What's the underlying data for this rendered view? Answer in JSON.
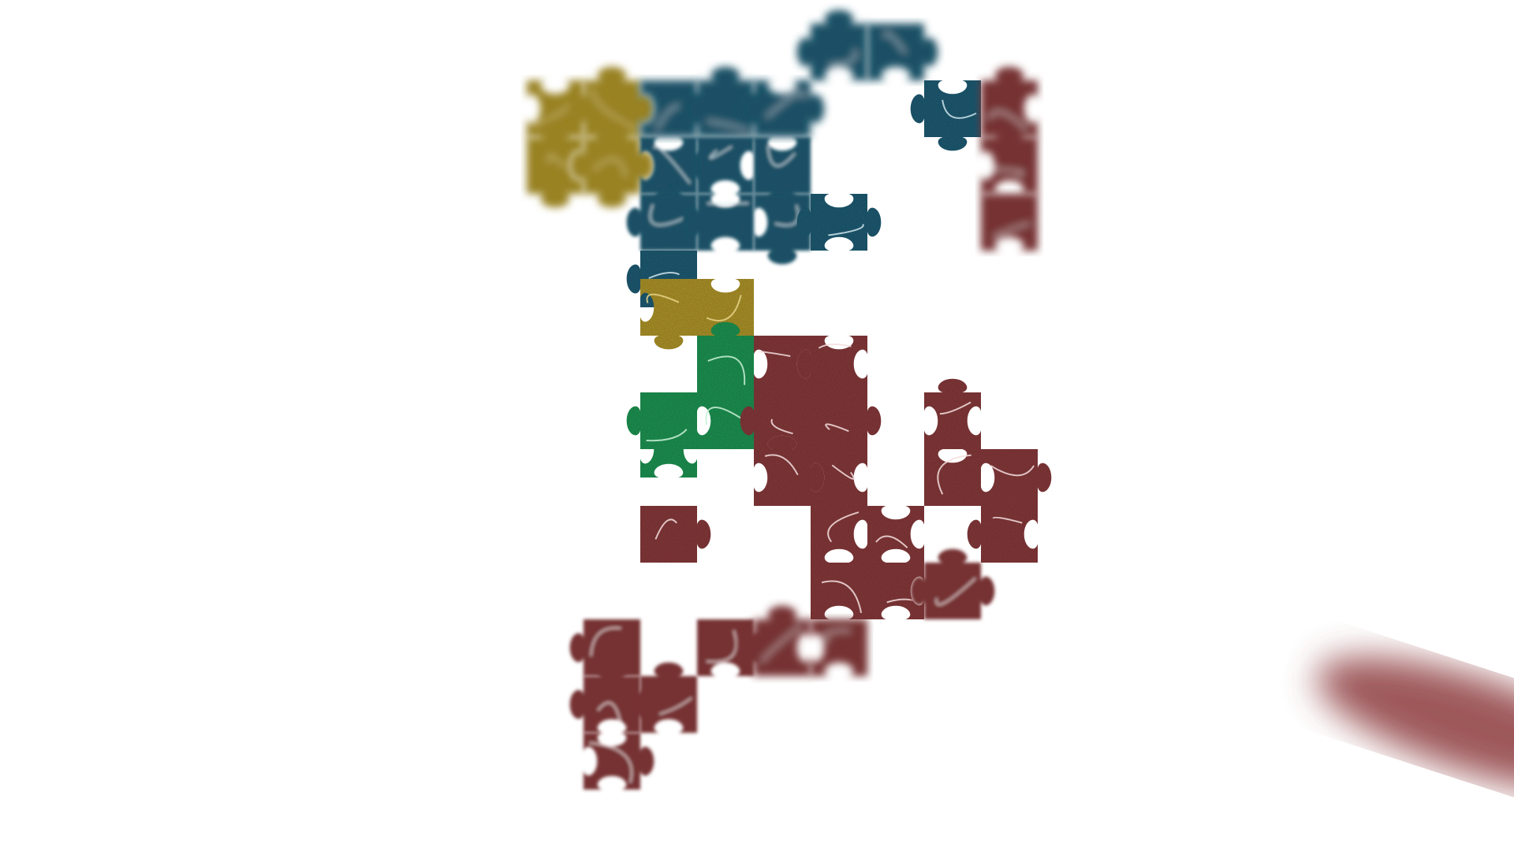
{
  "game": {
    "name": "",
    "state": "in-progress",
    "board_background": "#ffffff"
  },
  "regions": [
    {
      "id": "olive",
      "color": "#b59a2a",
      "vein_color": "#e8d58a"
    },
    {
      "id": "teal",
      "color": "#1f5f78",
      "vein_color": "#cfe4ec"
    },
    {
      "id": "green",
      "color": "#1e9a55",
      "vein_color": "#c8f0d6"
    },
    {
      "id": "maroon",
      "color": "#8c3b3d",
      "vein_color": "#f3dede"
    }
  ],
  "pieces": [
    {
      "name": "puzzle-piece-olive-1",
      "region": "olive",
      "cell": [
        0,
        1
      ],
      "blur": "heavy"
    },
    {
      "name": "puzzle-piece-olive-2",
      "region": "olive",
      "cell": [
        1,
        1
      ],
      "blur": "heavy"
    },
    {
      "name": "puzzle-piece-olive-3",
      "region": "olive",
      "cell": [
        0,
        2
      ],
      "blur": "heavy"
    },
    {
      "name": "puzzle-piece-olive-4",
      "region": "olive",
      "cell": [
        1,
        2
      ],
      "blur": "heavy"
    },
    {
      "name": "puzzle-piece-teal-1",
      "region": "teal",
      "cell": [
        2,
        1
      ],
      "blur": "heavy"
    },
    {
      "name": "puzzle-piece-teal-2",
      "region": "teal",
      "cell": [
        3,
        1
      ],
      "blur": "heavy"
    },
    {
      "name": "puzzle-piece-teal-3",
      "region": "teal",
      "cell": [
        4,
        1
      ],
      "blur": "heavy"
    },
    {
      "name": "puzzle-piece-teal-4",
      "region": "teal",
      "cell": [
        2,
        2
      ],
      "blur": "light"
    },
    {
      "name": "puzzle-piece-teal-5",
      "region": "teal",
      "cell": [
        3,
        2
      ],
      "blur": "light"
    },
    {
      "name": "puzzle-piece-teal-6",
      "region": "teal",
      "cell": [
        4,
        2
      ],
      "blur": "light"
    },
    {
      "name": "puzzle-piece-teal-7",
      "region": "teal",
      "cell": [
        2,
        3
      ],
      "blur": "light"
    },
    {
      "name": "puzzle-piece-teal-8",
      "region": "teal",
      "cell": [
        3,
        3
      ],
      "blur": "light"
    },
    {
      "name": "puzzle-piece-teal-9",
      "region": "teal",
      "cell": [
        4,
        3
      ],
      "blur": "light"
    },
    {
      "name": "puzzle-piece-teal-10",
      "region": "teal",
      "cell": [
        5,
        3
      ],
      "blur": "none"
    },
    {
      "name": "puzzle-piece-teal-11",
      "region": "teal",
      "cell": [
        5,
        0
      ],
      "blur": "heavy"
    },
    {
      "name": "puzzle-piece-teal-12",
      "region": "teal",
      "cell": [
        6,
        0
      ],
      "blur": "heavy"
    },
    {
      "name": "puzzle-piece-teal-13",
      "region": "teal",
      "cell": [
        7,
        1
      ],
      "blur": "none"
    },
    {
      "name": "puzzle-piece-teal-14",
      "region": "teal",
      "cell": [
        2,
        4
      ],
      "blur": "none"
    },
    {
      "name": "puzzle-piece-olive-5",
      "region": "olive",
      "cell": [
        2,
        4.5
      ],
      "blur": "none"
    },
    {
      "name": "puzzle-piece-olive-6",
      "region": "olive",
      "cell": [
        3,
        4.5
      ],
      "blur": "none"
    },
    {
      "name": "puzzle-piece-maroon-1",
      "region": "maroon",
      "cell": [
        8,
        1
      ],
      "blur": "heavy"
    },
    {
      "name": "puzzle-piece-maroon-2",
      "region": "maroon",
      "cell": [
        8,
        2
      ],
      "blur": "heavy"
    },
    {
      "name": "puzzle-piece-maroon-3",
      "region": "maroon",
      "cell": [
        8,
        3
      ],
      "blur": "heavy"
    },
    {
      "name": "puzzle-piece-olive-7",
      "region": "olive",
      "cell": [
        3,
        5.5
      ],
      "blur": "none"
    },
    {
      "name": "puzzle-piece-green-1",
      "region": "green",
      "cell": [
        2,
        6.5
      ],
      "blur": "none"
    },
    {
      "name": "puzzle-piece-green-2",
      "region": "green",
      "cell": [
        3,
        6.5
      ],
      "blur": "none"
    },
    {
      "name": "puzzle-piece-green-3",
      "region": "green",
      "cell": [
        3,
        5.5
      ],
      "blur": "none"
    },
    {
      "name": "puzzle-piece-green-4",
      "region": "green",
      "cell": [
        2,
        7
      ],
      "blur": "none"
    },
    {
      "name": "puzzle-piece-maroon-4",
      "region": "maroon",
      "cell": [
        4,
        5.5
      ],
      "blur": "none"
    },
    {
      "name": "puzzle-piece-maroon-5",
      "region": "maroon",
      "cell": [
        5,
        5.5
      ],
      "blur": "none"
    },
    {
      "name": "puzzle-piece-maroon-6",
      "region": "maroon",
      "cell": [
        4,
        6.5
      ],
      "blur": "none"
    },
    {
      "name": "puzzle-piece-maroon-7",
      "region": "maroon",
      "cell": [
        5,
        6.5
      ],
      "blur": "none"
    },
    {
      "name": "puzzle-piece-maroon-8",
      "region": "maroon",
      "cell": [
        4,
        7.5
      ],
      "blur": "none"
    },
    {
      "name": "puzzle-piece-maroon-9",
      "region": "maroon",
      "cell": [
        5,
        7.5
      ],
      "blur": "none"
    },
    {
      "name": "puzzle-piece-maroon-10",
      "region": "maroon",
      "cell": [
        7,
        6.5
      ],
      "blur": "none"
    },
    {
      "name": "puzzle-piece-maroon-11",
      "region": "maroon",
      "cell": [
        8,
        7.5
      ],
      "blur": "none"
    },
    {
      "name": "puzzle-piece-maroon-12",
      "region": "maroon",
      "cell": [
        7,
        7.5
      ],
      "blur": "none"
    },
    {
      "name": "puzzle-piece-maroon-13",
      "region": "maroon",
      "cell": [
        2,
        8.5
      ],
      "blur": "none"
    },
    {
      "name": "puzzle-piece-maroon-14",
      "region": "maroon",
      "cell": [
        5,
        8.5
      ],
      "blur": "none"
    },
    {
      "name": "puzzle-piece-maroon-15",
      "region": "maroon",
      "cell": [
        6,
        8.5
      ],
      "blur": "none"
    },
    {
      "name": "puzzle-piece-maroon-16",
      "region": "maroon",
      "cell": [
        5,
        9.5
      ],
      "blur": "none"
    },
    {
      "name": "puzzle-piece-maroon-17",
      "region": "maroon",
      "cell": [
        6,
        9.5
      ],
      "blur": "none"
    },
    {
      "name": "puzzle-piece-maroon-18",
      "region": "maroon",
      "cell": [
        8,
        8.5
      ],
      "blur": "none"
    },
    {
      "name": "puzzle-piece-maroon-19",
      "region": "maroon",
      "cell": [
        1,
        10.5
      ],
      "blur": "light"
    },
    {
      "name": "puzzle-piece-maroon-20",
      "region": "maroon",
      "cell": [
        1,
        11.5
      ],
      "blur": "light"
    },
    {
      "name": "puzzle-piece-maroon-21",
      "region": "maroon",
      "cell": [
        2,
        11.5
      ],
      "blur": "light"
    },
    {
      "name": "puzzle-piece-maroon-22",
      "region": "maroon",
      "cell": [
        1,
        12.5
      ],
      "blur": "light"
    },
    {
      "name": "puzzle-piece-maroon-23",
      "region": "maroon",
      "cell": [
        3,
        10.5
      ],
      "blur": "light"
    },
    {
      "name": "puzzle-piece-maroon-24",
      "region": "maroon",
      "cell": [
        4,
        10.5
      ],
      "blur": "heavy"
    },
    {
      "name": "puzzle-piece-maroon-25",
      "region": "maroon",
      "cell": [
        5,
        10.5
      ],
      "blur": "heavy"
    },
    {
      "name": "puzzle-piece-maroon-26",
      "region": "maroon",
      "cell": [
        7,
        9.5
      ],
      "blur": "light"
    }
  ],
  "held_piece": {
    "name": "held-piece-maroon",
    "region": "maroon"
  }
}
